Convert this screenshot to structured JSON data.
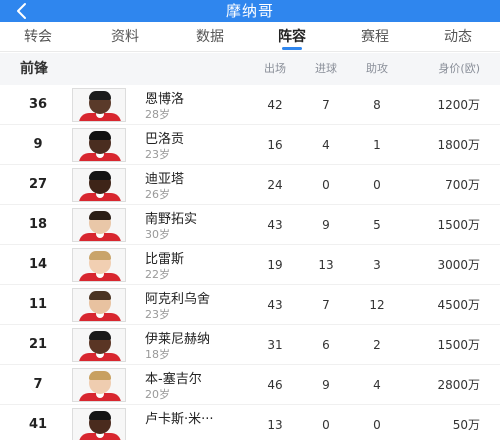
{
  "header": {
    "title": "摩纳哥",
    "back_icon": "chevron-left-icon"
  },
  "tabs": [
    {
      "label": "转会"
    },
    {
      "label": "资料"
    },
    {
      "label": "数据"
    },
    {
      "label": "阵容",
      "active": true
    },
    {
      "label": "赛程"
    },
    {
      "label": "动态"
    }
  ],
  "section": {
    "position": "前锋",
    "columns": {
      "apps": "出场",
      "goals": "进球",
      "assists": "助攻",
      "value": "身价(欧)"
    }
  },
  "players": [
    {
      "number": "36",
      "name": "恩博洛",
      "age": "28岁",
      "apps": "42",
      "goals": "7",
      "assists": "8",
      "value": "1200万"
    },
    {
      "number": "9",
      "name": "巴洛贡",
      "age": "23岁",
      "apps": "16",
      "goals": "4",
      "assists": "1",
      "value": "1800万"
    },
    {
      "number": "27",
      "name": "迪亚塔",
      "age": "26岁",
      "apps": "24",
      "goals": "0",
      "assists": "0",
      "value": "700万"
    },
    {
      "number": "18",
      "name": "南野拓实",
      "age": "30岁",
      "apps": "43",
      "goals": "9",
      "assists": "5",
      "value": "1500万"
    },
    {
      "number": "14",
      "name": "比雷斯",
      "age": "22岁",
      "apps": "19",
      "goals": "13",
      "assists": "3",
      "value": "3000万"
    },
    {
      "number": "11",
      "name": "阿克利乌舍",
      "age": "23岁",
      "apps": "43",
      "goals": "7",
      "assists": "12",
      "value": "4500万"
    },
    {
      "number": "21",
      "name": "伊莱尼赫纳",
      "age": "18岁",
      "apps": "31",
      "goals": "6",
      "assists": "2",
      "value": "1500万"
    },
    {
      "number": "7",
      "name": "本-塞吉尔",
      "age": "20岁",
      "apps": "46",
      "goals": "9",
      "assists": "4",
      "value": "2800万"
    },
    {
      "number": "41",
      "name": "卢卡斯·米···",
      "age": "",
      "apps": "13",
      "goals": "0",
      "assists": "0",
      "value": "50万"
    }
  ],
  "colors": {
    "accent": "#2f86ee",
    "kit": "#d8262f"
  }
}
